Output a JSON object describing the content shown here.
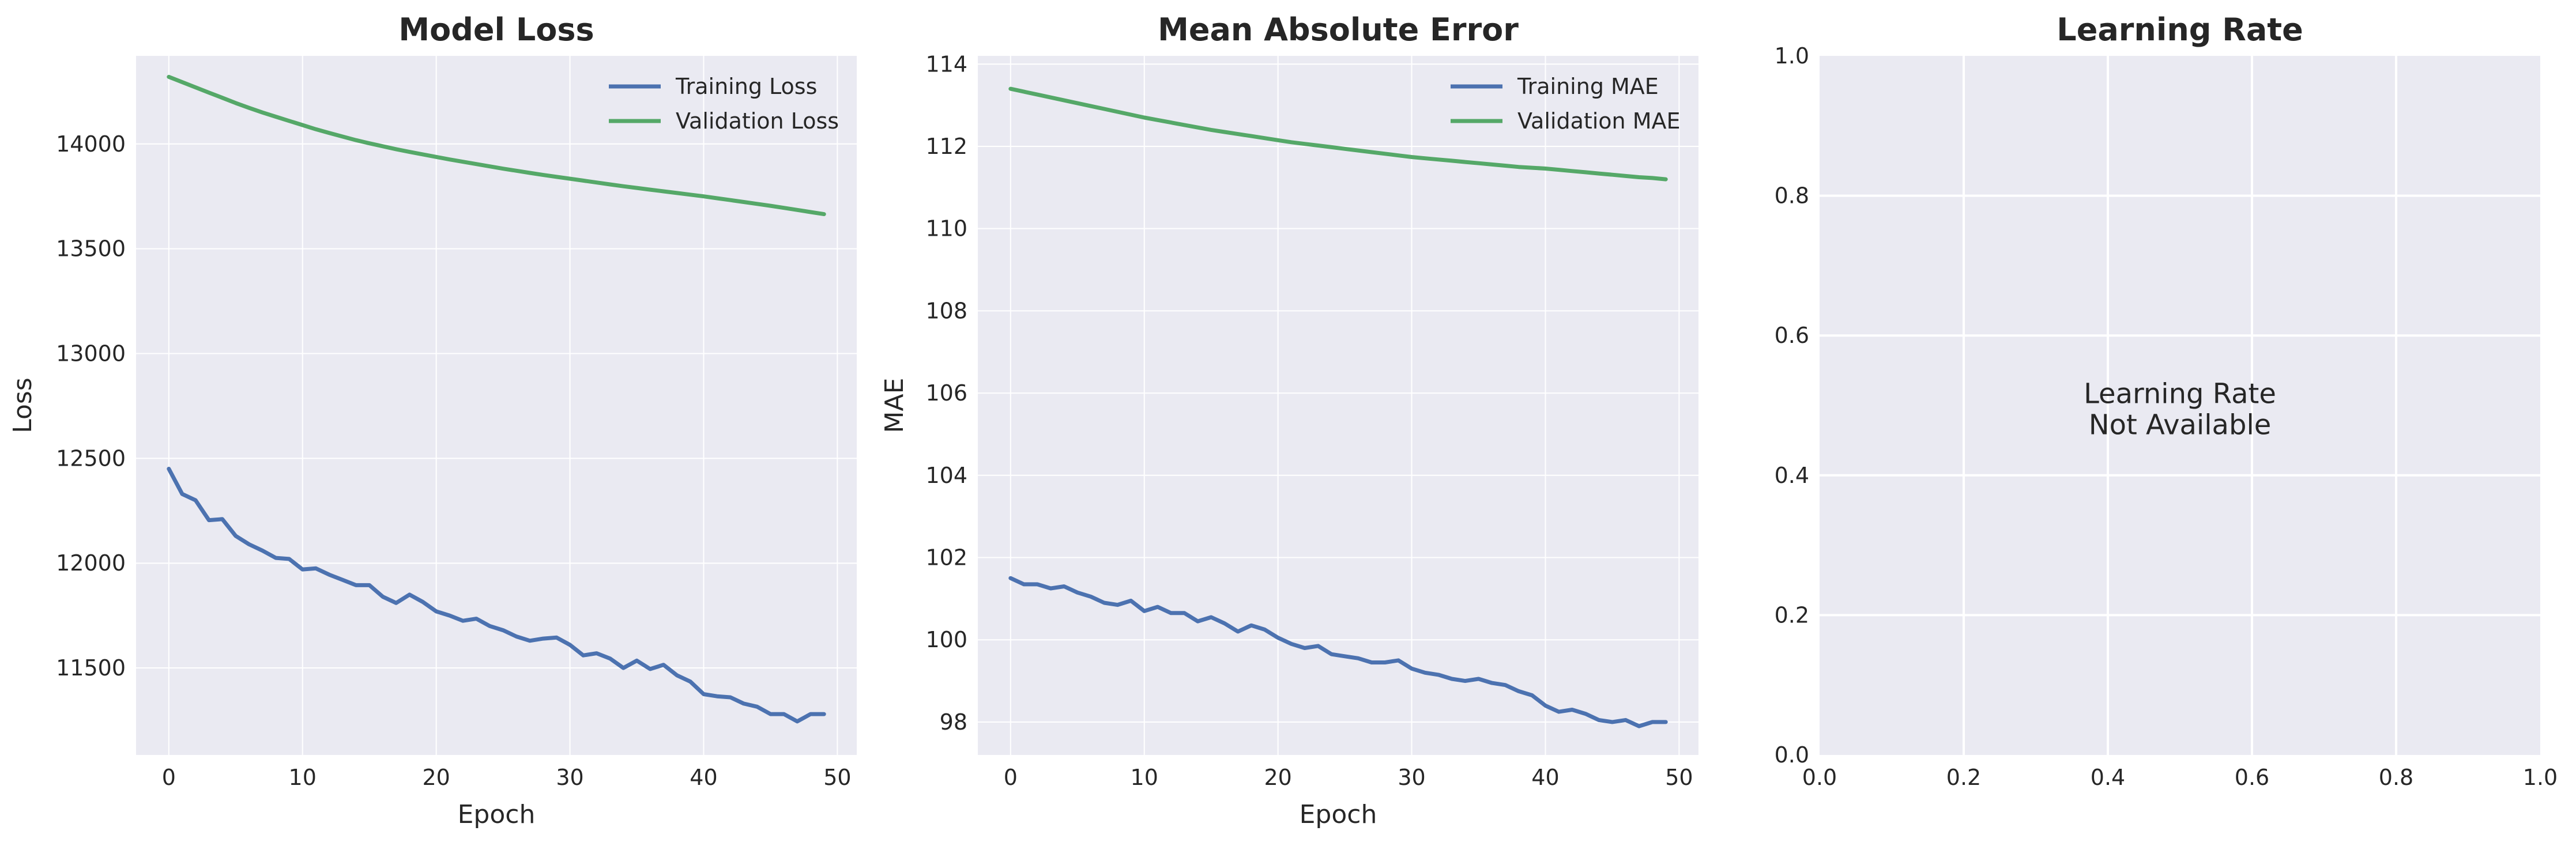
{
  "colors": {
    "training": "#4c72b0",
    "validation": "#55a868",
    "panel_bg": "#eaeaf2",
    "grid": "#ffffff"
  },
  "chart_data": [
    {
      "type": "line",
      "title": "Model Loss",
      "xlabel": "Epoch",
      "ylabel": "Loss",
      "xlim": [
        -2.45,
        51.45
      ],
      "ylim": [
        11085,
        14420
      ],
      "xticks": [
        0,
        10,
        20,
        30,
        40,
        50
      ],
      "yticks": [
        11500,
        12000,
        12500,
        13000,
        13500,
        14000
      ],
      "legend_position": "top-right",
      "grid": true,
      "x": [
        0,
        1,
        2,
        3,
        4,
        5,
        6,
        7,
        8,
        9,
        10,
        11,
        12,
        13,
        14,
        15,
        16,
        17,
        18,
        19,
        20,
        21,
        22,
        23,
        24,
        25,
        26,
        27,
        28,
        29,
        30,
        31,
        32,
        33,
        34,
        35,
        36,
        37,
        38,
        39,
        40,
        41,
        42,
        43,
        44,
        45,
        46,
        47,
        48,
        49
      ],
      "series": [
        {
          "name": "Training Loss",
          "color_key": "training",
          "values": [
            12450,
            12330,
            12300,
            12205,
            12210,
            12130,
            12090,
            12060,
            12025,
            12020,
            11970,
            11975,
            11945,
            11920,
            11895,
            11895,
            11840,
            11810,
            11850,
            11815,
            11770,
            11750,
            11725,
            11735,
            11700,
            11680,
            11650,
            11630,
            11640,
            11645,
            11610,
            11560,
            11570,
            11545,
            11500,
            11535,
            11495,
            11515,
            11465,
            11435,
            11375,
            11365,
            11360,
            11330,
            11315,
            11280,
            11280,
            11245,
            11280,
            11280
          ]
        },
        {
          "name": "Validation Loss",
          "color_key": "validation",
          "values": [
            14320,
            14295,
            14270,
            14245,
            14220,
            14195,
            14172,
            14150,
            14130,
            14110,
            14090,
            14070,
            14052,
            14035,
            14018,
            14003,
            13989,
            13975,
            13962,
            13950,
            13938,
            13926,
            13915,
            13904,
            13893,
            13882,
            13872,
            13862,
            13852,
            13843,
            13834,
            13825,
            13816,
            13807,
            13798,
            13790,
            13782,
            13774,
            13766,
            13758,
            13750,
            13741,
            13732,
            13723,
            13714,
            13705,
            13695,
            13685,
            13675,
            13665
          ]
        }
      ]
    },
    {
      "type": "line",
      "title": "Mean Absolute Error",
      "xlabel": "Epoch",
      "ylabel": "MAE",
      "xlim": [
        -2.45,
        51.45
      ],
      "ylim": [
        97.2,
        114.2
      ],
      "xticks": [
        0,
        10,
        20,
        30,
        40,
        50
      ],
      "yticks": [
        98,
        100,
        102,
        104,
        106,
        108,
        110,
        112,
        114
      ],
      "legend_position": "top-right",
      "grid": true,
      "x": [
        0,
        1,
        2,
        3,
        4,
        5,
        6,
        7,
        8,
        9,
        10,
        11,
        12,
        13,
        14,
        15,
        16,
        17,
        18,
        19,
        20,
        21,
        22,
        23,
        24,
        25,
        26,
        27,
        28,
        29,
        30,
        31,
        32,
        33,
        34,
        35,
        36,
        37,
        38,
        39,
        40,
        41,
        42,
        43,
        44,
        45,
        46,
        47,
        48,
        49
      ],
      "series": [
        {
          "name": "Training MAE",
          "color_key": "training",
          "values": [
            101.5,
            101.35,
            101.35,
            101.25,
            101.3,
            101.15,
            101.05,
            100.9,
            100.85,
            100.95,
            100.7,
            100.8,
            100.65,
            100.65,
            100.45,
            100.55,
            100.4,
            100.2,
            100.35,
            100.25,
            100.05,
            99.9,
            99.8,
            99.85,
            99.65,
            99.6,
            99.55,
            99.45,
            99.45,
            99.5,
            99.3,
            99.2,
            99.15,
            99.05,
            99.0,
            99.05,
            98.95,
            98.9,
            98.75,
            98.65,
            98.4,
            98.25,
            98.3,
            98.2,
            98.05,
            98.0,
            98.05,
            97.9,
            98.0,
            98.0
          ]
        },
        {
          "name": "Validation MAE",
          "color_key": "validation",
          "values": [
            113.4,
            113.33,
            113.26,
            113.19,
            113.12,
            113.05,
            112.98,
            112.91,
            112.84,
            112.77,
            112.7,
            112.64,
            112.58,
            112.52,
            112.46,
            112.4,
            112.35,
            112.3,
            112.25,
            112.2,
            112.15,
            112.1,
            112.06,
            112.02,
            111.98,
            111.94,
            111.9,
            111.86,
            111.82,
            111.78,
            111.74,
            111.71,
            111.68,
            111.65,
            111.62,
            111.59,
            111.56,
            111.53,
            111.5,
            111.48,
            111.46,
            111.43,
            111.4,
            111.37,
            111.34,
            111.31,
            111.28,
            111.25,
            111.23,
            111.2
          ]
        }
      ]
    },
    {
      "type": "line",
      "title": "Learning Rate",
      "annotation_line1": "Learning Rate",
      "annotation_line2": "Not Available",
      "xlim": [
        0,
        1
      ],
      "ylim": [
        0,
        1
      ],
      "xticks": [
        0.0,
        0.2,
        0.4,
        0.6,
        0.8,
        1.0
      ],
      "yticks": [
        0.0,
        0.2,
        0.4,
        0.6,
        0.8,
        1.0
      ],
      "tick_labels": [
        "0.0",
        "0.2",
        "0.4",
        "0.6",
        "0.8",
        "1.0"
      ],
      "grid": true,
      "series": []
    }
  ]
}
